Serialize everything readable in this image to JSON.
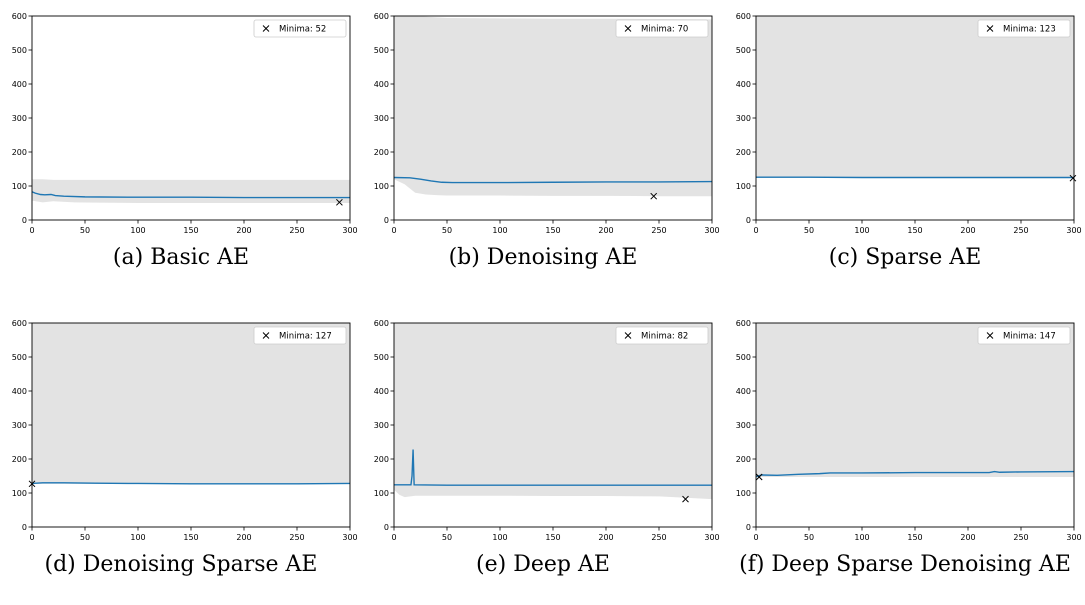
{
  "chart_data": [
    {
      "type": "line",
      "caption": "(a) Basic AE",
      "xlim": [
        0,
        300
      ],
      "ylim": [
        0,
        600
      ],
      "xticks": [
        0,
        50,
        100,
        150,
        200,
        250,
        300
      ],
      "yticks": [
        0,
        100,
        200,
        300,
        400,
        500,
        600
      ],
      "legend": "upper right",
      "series": [
        {
          "color": "#1f77b4",
          "x": [
            0,
            3,
            8,
            12,
            18,
            22,
            30,
            50,
            100,
            150,
            200,
            250,
            300
          ],
          "y": [
            83,
            79,
            75,
            74,
            75,
            72,
            70,
            68,
            67,
            67,
            66,
            66,
            66
          ]
        }
      ],
      "band": {
        "color": "#e3e3e3",
        "x": [
          0,
          10,
          20,
          40,
          60,
          100,
          150,
          200,
          250,
          300
        ],
        "lower": [
          57,
          52,
          55,
          52,
          51,
          50,
          50,
          50,
          50,
          50
        ],
        "upper": [
          120,
          120,
          118,
          118,
          118,
          118,
          118,
          118,
          118,
          118
        ]
      },
      "minimum": {
        "label": "Minima: 52",
        "x": 290,
        "y": 52
      }
    },
    {
      "type": "line",
      "caption": "(b) Denoising AE",
      "xlim": [
        0,
        300
      ],
      "ylim": [
        0,
        600
      ],
      "xticks": [
        0,
        50,
        100,
        150,
        200,
        250,
        300
      ],
      "yticks": [
        0,
        100,
        200,
        300,
        400,
        500,
        600
      ],
      "legend": "upper right",
      "series": [
        {
          "color": "#1f77b4",
          "x": [
            0,
            15,
            25,
            35,
            45,
            55,
            70,
            100,
            150,
            200,
            250,
            300
          ],
          "y": [
            125,
            124,
            120,
            115,
            111,
            110,
            110,
            110,
            111,
            112,
            112,
            113
          ]
        }
      ],
      "band": {
        "color": "#e3e3e3",
        "x": [
          0,
          10,
          20,
          30,
          40,
          50,
          100,
          150,
          200,
          250,
          300
        ],
        "lower": [
          120,
          105,
          80,
          75,
          73,
          72,
          72,
          71,
          71,
          70,
          70
        ],
        "upper": [
          600,
          600,
          600,
          598,
          596,
          594,
          593,
          592,
          592,
          591,
          590
        ]
      },
      "minimum": {
        "label": "Minima: 70",
        "x": 245,
        "y": 70
      }
    },
    {
      "type": "line",
      "caption": "(c) Sparse AE",
      "xlim": [
        0,
        300
      ],
      "ylim": [
        0,
        600
      ],
      "xticks": [
        0,
        50,
        100,
        150,
        200,
        250,
        300
      ],
      "yticks": [
        0,
        100,
        200,
        300,
        400,
        500,
        600
      ],
      "legend": "upper right",
      "series": [
        {
          "color": "#1f77b4",
          "x": [
            0,
            50,
            100,
            150,
            200,
            250,
            300
          ],
          "y": [
            126,
            126,
            125,
            125,
            125,
            125,
            125
          ]
        }
      ],
      "band": {
        "color": "#e3e3e3",
        "x": [
          0,
          300
        ],
        "lower": [
          124,
          123
        ],
        "upper": [
          600,
          600
        ]
      },
      "minimum": {
        "label": "Minima: 123",
        "x": 299,
        "y": 123
      }
    },
    {
      "type": "line",
      "caption": "(d) Denoising Sparse AE",
      "xlim": [
        0,
        300
      ],
      "ylim": [
        0,
        600
      ],
      "xticks": [
        0,
        50,
        100,
        150,
        200,
        250,
        300
      ],
      "yticks": [
        0,
        100,
        200,
        300,
        400,
        500,
        600
      ],
      "legend": "upper right",
      "series": [
        {
          "color": "#1f77b4",
          "x": [
            0,
            10,
            30,
            60,
            100,
            150,
            200,
            250,
            300
          ],
          "y": [
            128,
            130,
            130,
            129,
            128,
            127,
            127,
            127,
            128
          ]
        }
      ],
      "band": {
        "color": "#e3e3e3",
        "x": [
          0,
          300
        ],
        "lower": [
          127,
          127
        ],
        "upper": [
          600,
          600
        ]
      },
      "minimum": {
        "label": "Minima: 127",
        "x": 0,
        "y": 127
      }
    },
    {
      "type": "line",
      "caption": "(e) Deep AE",
      "xlim": [
        0,
        300
      ],
      "ylim": [
        0,
        600
      ],
      "xticks": [
        0,
        50,
        100,
        150,
        200,
        250,
        300
      ],
      "yticks": [
        0,
        100,
        200,
        300,
        400,
        500,
        600
      ],
      "legend": "upper right",
      "series": [
        {
          "color": "#1f77b4",
          "x": [
            0,
            16,
            17,
            18,
            19,
            50,
            100,
            150,
            200,
            250,
            300
          ],
          "y": [
            124,
            124,
            150,
            228,
            124,
            123,
            123,
            123,
            123,
            123,
            123
          ]
        }
      ],
      "band": {
        "color": "#e3e3e3",
        "x": [
          0,
          5,
          10,
          20,
          50,
          100,
          150,
          200,
          250,
          300
        ],
        "lower": [
          110,
          95,
          88,
          92,
          92,
          92,
          91,
          91,
          90,
          82
        ],
        "upper": [
          600,
          600,
          600,
          600,
          600,
          600,
          600,
          600,
          600,
          600
        ]
      },
      "minimum": {
        "label": "Minima: 82",
        "x": 275,
        "y": 82
      }
    },
    {
      "type": "line",
      "caption": "(f) Deep Sparse Denoising AE",
      "xlim": [
        0,
        300
      ],
      "ylim": [
        0,
        600
      ],
      "xticks": [
        0,
        50,
        100,
        150,
        200,
        250,
        300
      ],
      "yticks": [
        0,
        100,
        200,
        300,
        400,
        500,
        600
      ],
      "legend": "upper right",
      "series": [
        {
          "color": "#1f77b4",
          "x": [
            0,
            5,
            20,
            40,
            60,
            70,
            100,
            150,
            200,
            220,
            225,
            230,
            250,
            300
          ],
          "y": [
            148,
            153,
            152,
            155,
            157,
            159,
            159,
            160,
            160,
            160,
            163,
            161,
            162,
            163
          ]
        }
      ],
      "band": {
        "color": "#e3e3e3",
        "x": [
          0,
          300
        ],
        "lower": [
          147,
          147
        ],
        "upper": [
          600,
          600
        ]
      },
      "minimum": {
        "label": "Minima: 147",
        "x": 3,
        "y": 147
      }
    }
  ]
}
